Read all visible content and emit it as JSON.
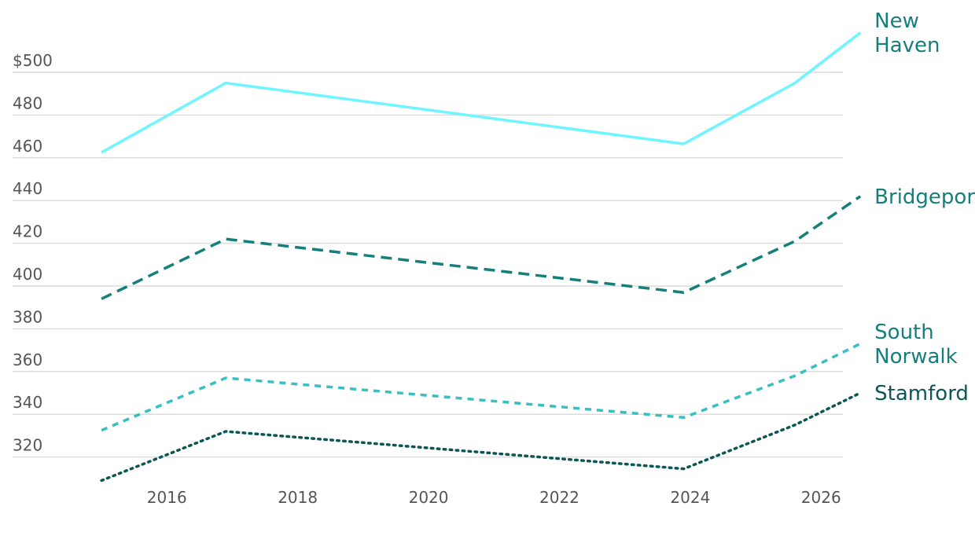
{
  "chart_data": {
    "type": "line",
    "x_ticks": [
      2016,
      2018,
      2020,
      2022,
      2024,
      2026
    ],
    "x_range": [
      2014.2,
      2027.9
    ],
    "y_ticks": [
      {
        "value": 320,
        "label": "320"
      },
      {
        "value": 340,
        "label": "340"
      },
      {
        "value": 360,
        "label": "360"
      },
      {
        "value": 380,
        "label": "380"
      },
      {
        "value": 400,
        "label": "400"
      },
      {
        "value": 420,
        "label": "420"
      },
      {
        "value": 440,
        "label": "440"
      },
      {
        "value": 460,
        "label": "460"
      },
      {
        "value": 480,
        "label": "480"
      },
      {
        "value": 500,
        "label": "$500"
      }
    ],
    "ylim": [
      303,
      522
    ],
    "grid": "horizontal",
    "series": [
      {
        "name": "New Haven",
        "label_lines": [
          "New",
          "Haven"
        ],
        "color": "#6ff5ff",
        "dash": "solid",
        "points": [
          [
            2015.0,
            462.5
          ],
          [
            2016.9,
            495
          ],
          [
            2023.9,
            466.5
          ],
          [
            2025.6,
            495
          ],
          [
            2026.6,
            518.5
          ]
        ]
      },
      {
        "name": "Bridgeport",
        "label_lines": [
          "Bridgeport"
        ],
        "color": "#157f7b",
        "dash": "dashed",
        "points": [
          [
            2015.0,
            394
          ],
          [
            2016.9,
            422
          ],
          [
            2023.9,
            397
          ],
          [
            2025.6,
            421
          ],
          [
            2026.6,
            442
          ]
        ]
      },
      {
        "name": "South Norwalk",
        "label_lines": [
          "South",
          "Norwalk"
        ],
        "color": "#38bfc2",
        "dash": "short-dash",
        "points": [
          [
            2015.0,
            332.5
          ],
          [
            2016.9,
            357
          ],
          [
            2023.9,
            338.5
          ],
          [
            2025.6,
            358
          ],
          [
            2026.6,
            373
          ]
        ]
      },
      {
        "name": "Stamford",
        "label_lines": [
          "Stamford"
        ],
        "color": "#0c5755",
        "dash": "dotted",
        "points": [
          [
            2015.0,
            309
          ],
          [
            2016.9,
            332
          ],
          [
            2023.9,
            314.5
          ],
          [
            2025.6,
            335
          ],
          [
            2026.6,
            350
          ]
        ]
      }
    ]
  }
}
